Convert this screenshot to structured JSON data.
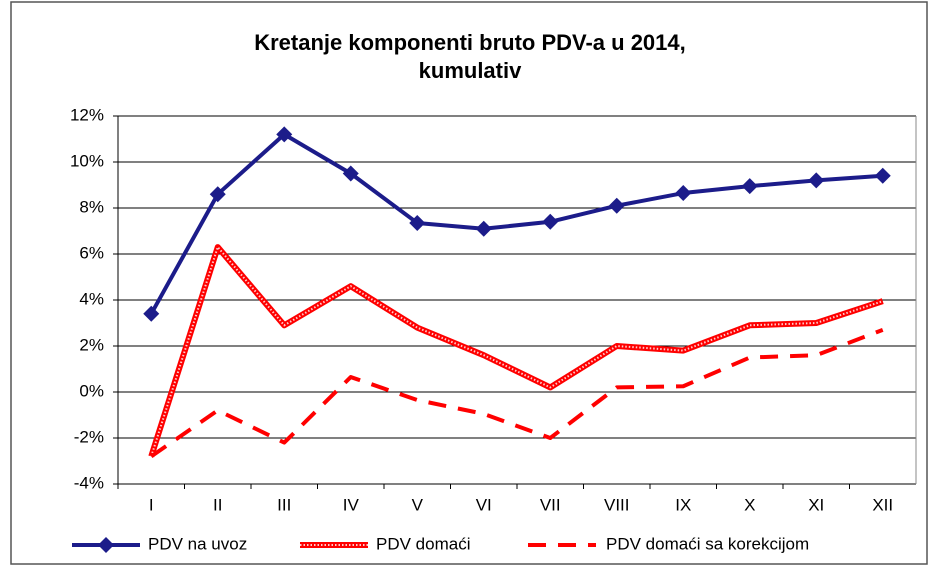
{
  "chart_data": {
    "type": "line",
    "title": [
      "Kretanje komponenti bruto PDV-a u 2014,",
      "kumulativ"
    ],
    "categories": [
      "I",
      "II",
      "III",
      "IV",
      "V",
      "VI",
      "VII",
      "VIII",
      "IX",
      "X",
      "XI",
      "XII"
    ],
    "series": [
      {
        "name": "PDV na uvoz",
        "color": "#1c1c8a",
        "style": "solid",
        "marker": "diamond",
        "values": [
          3.4,
          8.6,
          11.2,
          9.5,
          7.35,
          7.1,
          7.4,
          8.1,
          8.65,
          8.95,
          9.2,
          9.4
        ]
      },
      {
        "name": "PDV domaći",
        "color": "#ff0000",
        "style": "dotted",
        "values": [
          -2.8,
          6.3,
          2.9,
          4.6,
          2.8,
          1.6,
          0.2,
          2.0,
          1.8,
          2.9,
          3.0,
          3.95
        ]
      },
      {
        "name": "PDV domaći sa korekcijom",
        "color": "#ff0000",
        "style": "dashed",
        "values": [
          -2.8,
          -0.8,
          -2.2,
          0.65,
          -0.35,
          -0.95,
          -2.0,
          0.2,
          0.25,
          1.5,
          1.6,
          2.7
        ]
      }
    ],
    "ylim": [
      -4,
      12
    ],
    "yticks": [
      {
        "value": -4,
        "label": "-4%"
      },
      {
        "value": -2,
        "label": "-2%"
      },
      {
        "value": 0,
        "label": "0%"
      },
      {
        "value": 2,
        "label": "2%"
      },
      {
        "value": 4,
        "label": "4%"
      },
      {
        "value": 6,
        "label": "6%"
      },
      {
        "value": 8,
        "label": "8%"
      },
      {
        "value": 10,
        "label": "10%"
      },
      {
        "value": 12,
        "label": "12%"
      }
    ],
    "grid": true,
    "legend": "bottom"
  }
}
